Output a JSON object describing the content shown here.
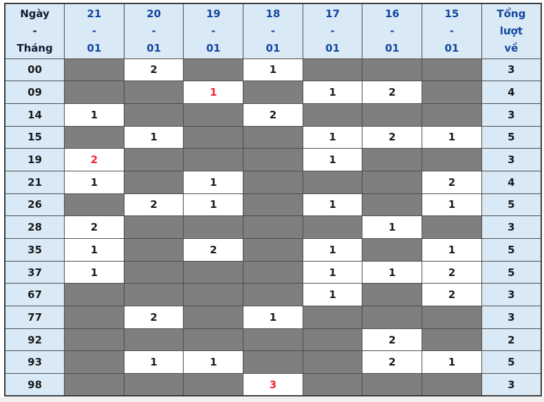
{
  "colors": {
    "page_bg": "#f0f0f0",
    "panel_bg": "#ffffff",
    "header_bg": "#d9eaf6",
    "filled_bg": "#7f7f7f",
    "hit_bg": "#ffffff",
    "corner_text": "#121b33",
    "date_text": "#1546a0",
    "num_text": "#1a1a1a",
    "highlight": "#f02633",
    "border": "#4c4c4c",
    "outer_border": "#3a3a3a"
  },
  "chart_data": {
    "type": "table",
    "corner_header": {
      "top": "Ngày",
      "sep": "-",
      "bottom": "Tháng"
    },
    "separator": "-",
    "date_columns": [
      {
        "day": "21",
        "month": "01"
      },
      {
        "day": "20",
        "month": "01"
      },
      {
        "day": "19",
        "month": "01"
      },
      {
        "day": "18",
        "month": "01"
      },
      {
        "day": "17",
        "month": "01"
      },
      {
        "day": "16",
        "month": "01"
      },
      {
        "day": "15",
        "month": "01"
      }
    ],
    "total_header": {
      "top": "Tổng",
      "mid": "lượt",
      "bottom": "về"
    },
    "rows": [
      {
        "label": "00",
        "counts": [
          "",
          "2",
          "",
          "1",
          "",
          "",
          ""
        ],
        "red_cols": [],
        "total": "3"
      },
      {
        "label": "09",
        "counts": [
          "",
          "",
          "1",
          "",
          "1",
          "2",
          ""
        ],
        "red_cols": [
          2
        ],
        "total": "4"
      },
      {
        "label": "14",
        "counts": [
          "1",
          "",
          "",
          "2",
          "",
          "",
          ""
        ],
        "red_cols": [],
        "total": "3"
      },
      {
        "label": "15",
        "counts": [
          "",
          "1",
          "",
          "",
          "1",
          "2",
          "1"
        ],
        "red_cols": [],
        "total": "5"
      },
      {
        "label": "19",
        "counts": [
          "2",
          "",
          "",
          "",
          "1",
          "",
          ""
        ],
        "red_cols": [
          0
        ],
        "total": "3"
      },
      {
        "label": "21",
        "counts": [
          "1",
          "",
          "1",
          "",
          "",
          "",
          "2"
        ],
        "red_cols": [],
        "total": "4"
      },
      {
        "label": "26",
        "counts": [
          "",
          "2",
          "1",
          "",
          "1",
          "",
          "1"
        ],
        "red_cols": [],
        "total": "5"
      },
      {
        "label": "28",
        "counts": [
          "2",
          "",
          "",
          "",
          "",
          "1",
          ""
        ],
        "red_cols": [],
        "total": "3"
      },
      {
        "label": "35",
        "counts": [
          "1",
          "",
          "2",
          "",
          "1",
          "",
          "1"
        ],
        "red_cols": [],
        "total": "5"
      },
      {
        "label": "37",
        "counts": [
          "1",
          "",
          "",
          "",
          "1",
          "1",
          "2"
        ],
        "red_cols": [],
        "total": "5"
      },
      {
        "label": "67",
        "counts": [
          "",
          "",
          "",
          "",
          "1",
          "",
          "2"
        ],
        "red_cols": [],
        "total": "3"
      },
      {
        "label": "77",
        "counts": [
          "",
          "2",
          "",
          "1",
          "",
          "",
          ""
        ],
        "red_cols": [],
        "total": "3"
      },
      {
        "label": "92",
        "counts": [
          "",
          "",
          "",
          "",
          "",
          "2",
          ""
        ],
        "red_cols": [],
        "total": "2"
      },
      {
        "label": "93",
        "counts": [
          "",
          "1",
          "1",
          "",
          "",
          "2",
          "1"
        ],
        "red_cols": [],
        "total": "5"
      },
      {
        "label": "98",
        "counts": [
          "",
          "",
          "",
          "3",
          "",
          "",
          ""
        ],
        "red_cols": [
          3
        ],
        "total": "3"
      }
    ]
  }
}
